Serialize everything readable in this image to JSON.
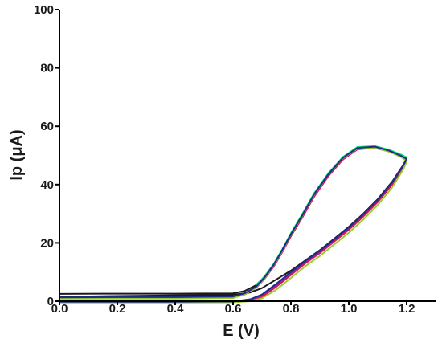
{
  "chart_data": {
    "type": "line",
    "title": "",
    "xlabel": "E (V)",
    "ylabel": "Ip (μA)",
    "xlim": [
      0.0,
      1.3
    ],
    "ylim": [
      0,
      100
    ],
    "x_ticks": [
      "0.0",
      "0.2",
      "0.4",
      "0.6",
      "0.8",
      "1.0",
      "1.2"
    ],
    "y_ticks": [
      "0",
      "20",
      "40",
      "60",
      "80",
      "100"
    ],
    "grid": false,
    "legend": "none",
    "series": [
      {
        "color": "#1a1a1a",
        "x": [
          0.0,
          0.2,
          0.4,
          0.6,
          0.66,
          0.7,
          0.75,
          0.8,
          0.85,
          0.9,
          0.95,
          1.0,
          1.05,
          1.1,
          1.15,
          1.19,
          1.2,
          1.18,
          1.14,
          1.09,
          1.03,
          0.98,
          0.93,
          0.88,
          0.84,
          0.8,
          0.77,
          0.74,
          0.71,
          0.68,
          0.64,
          0.6,
          0.4,
          0.2,
          0.0
        ],
        "y": [
          1.5,
          1.8,
          2.0,
          2.2,
          3.0,
          4.5,
          7.5,
          10.5,
          14.0,
          17.5,
          21.5,
          25.5,
          30.0,
          35.0,
          41.0,
          47.0,
          49.0,
          50.0,
          51.5,
          53.0,
          52.5,
          49.0,
          43.5,
          36.5,
          29.5,
          23.0,
          17.5,
          12.5,
          8.5,
          5.5,
          3.5,
          2.7,
          2.6,
          2.6,
          2.5
        ]
      },
      {
        "color": "#7b2fbf",
        "x": [
          0.0,
          0.2,
          0.4,
          0.6,
          0.66,
          0.7,
          0.75,
          0.8,
          0.85,
          0.9,
          0.95,
          1.0,
          1.05,
          1.1,
          1.15,
          1.19,
          1.2,
          1.18,
          1.14,
          1.09,
          1.03,
          0.98,
          0.93,
          0.88,
          0.84,
          0.8,
          0.77,
          0.74,
          0.71,
          0.68,
          0.64,
          0.6,
          0.4,
          0.2,
          0.0
        ],
        "y": [
          -0.3,
          -0.3,
          -0.3,
          -0.2,
          0.5,
          2.0,
          5.5,
          9.5,
          13.5,
          17.0,
          21.0,
          25.0,
          29.5,
          34.5,
          40.5,
          46.5,
          48.5,
          49.8,
          51.5,
          52.8,
          52.3,
          48.8,
          43.2,
          36.0,
          29.0,
          22.5,
          17.0,
          12.0,
          8.0,
          4.8,
          2.5,
          1.5,
          1.3,
          1.3,
          1.2
        ]
      },
      {
        "color": "#d4145a",
        "x": [
          0.0,
          0.2,
          0.4,
          0.6,
          0.66,
          0.7,
          0.75,
          0.8,
          0.85,
          0.9,
          0.95,
          1.0,
          1.05,
          1.1,
          1.15,
          1.19,
          1.2,
          1.18,
          1.14,
          1.09,
          1.03,
          0.98,
          0.93,
          0.88,
          0.84,
          0.8,
          0.77,
          0.74,
          0.71,
          0.68,
          0.64,
          0.6,
          0.4,
          0.2,
          0.0
        ],
        "y": [
          -0.4,
          -0.4,
          -0.4,
          -0.3,
          0.2,
          1.5,
          5.0,
          9.0,
          13.0,
          16.5,
          20.5,
          24.5,
          29.0,
          34.0,
          40.0,
          46.0,
          48.2,
          49.6,
          51.3,
          52.6,
          52.1,
          48.6,
          43.0,
          35.8,
          28.8,
          22.3,
          16.8,
          11.8,
          7.8,
          4.6,
          2.3,
          1.2,
          1.0,
          1.0,
          1.0
        ]
      },
      {
        "color": "#9acd32",
        "x": [
          0.0,
          0.2,
          0.4,
          0.6,
          0.66,
          0.7,
          0.75,
          0.8,
          0.85,
          0.9,
          0.95,
          1.0,
          1.05,
          1.1,
          1.15,
          1.19,
          1.2,
          1.18,
          1.14,
          1.09,
          1.03,
          0.98,
          0.93,
          0.88,
          0.84,
          0.8,
          0.77,
          0.74,
          0.71,
          0.68,
          0.64,
          0.6,
          0.4,
          0.2,
          0.0
        ],
        "y": [
          -0.5,
          -0.5,
          -0.5,
          -0.4,
          0.0,
          1.0,
          4.0,
          8.0,
          12.0,
          15.5,
          19.5,
          23.5,
          28.0,
          33.0,
          39.0,
          45.5,
          48.0,
          49.5,
          51.2,
          52.7,
          52.4,
          49.0,
          43.6,
          36.4,
          29.4,
          22.8,
          17.2,
          12.2,
          8.0,
          4.7,
          2.3,
          1.1,
          0.9,
          0.9,
          0.9
        ]
      },
      {
        "color": "#00e676",
        "x": [
          1.2,
          1.18,
          1.14,
          1.09,
          1.03,
          0.98,
          0.93,
          0.88,
          0.84,
          0.8,
          0.77,
          0.74,
          0.71,
          0.68
        ],
        "y": [
          49.3,
          50.3,
          51.9,
          53.2,
          52.9,
          49.5,
          44.0,
          37.0,
          30.0,
          23.3,
          17.8,
          12.7,
          8.7,
          5.3
        ]
      },
      {
        "color": "#1f2a8a",
        "x": [
          0.0,
          0.2,
          0.4,
          0.6,
          0.66,
          0.7,
          0.75,
          0.8,
          0.85,
          0.9,
          0.95,
          1.0,
          1.05,
          1.1,
          1.15,
          1.19,
          1.2,
          1.18,
          1.14,
          1.09,
          1.03,
          0.98,
          0.93,
          0.88,
          0.84,
          0.8,
          0.77,
          0.74,
          0.71,
          0.68,
          0.64,
          0.6,
          0.4,
          0.2,
          0.0
        ],
        "y": [
          -0.2,
          -0.2,
          -0.2,
          -0.1,
          0.7,
          2.3,
          6.0,
          10.0,
          13.8,
          17.3,
          21.3,
          25.3,
          29.8,
          34.8,
          40.8,
          46.8,
          48.8,
          49.9,
          51.6,
          53.0,
          52.6,
          49.2,
          43.6,
          36.6,
          29.6,
          23.0,
          17.5,
          12.4,
          8.3,
          5.0,
          2.7,
          1.6,
          1.4,
          1.4,
          1.3
        ]
      }
    ]
  }
}
